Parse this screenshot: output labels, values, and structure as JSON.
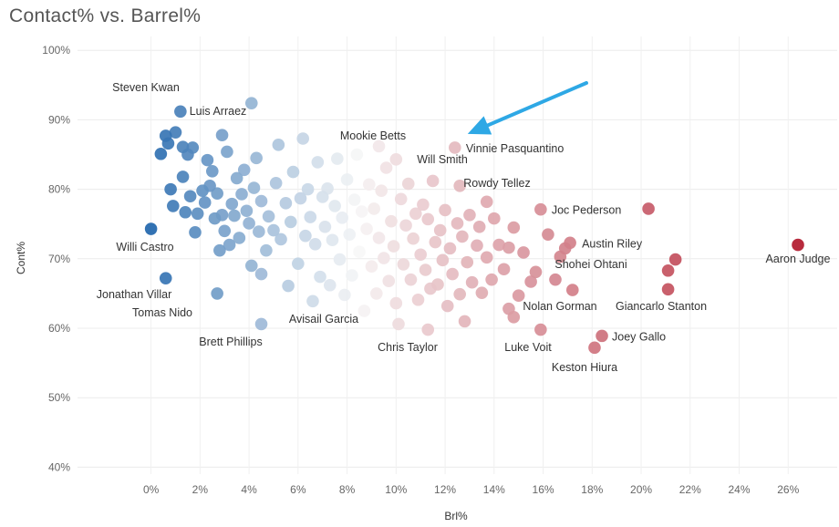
{
  "chart_data": {
    "type": "scatter",
    "title": "Contact% vs. Barrel%",
    "xlabel": "Brl%",
    "ylabel": "Cont%",
    "xlim": [
      -3,
      28
    ],
    "ylim": [
      39,
      102
    ],
    "x_ticks": [
      {
        "value": 0,
        "label": "0%"
      },
      {
        "value": 2,
        "label": "2%"
      },
      {
        "value": 4,
        "label": "4%"
      },
      {
        "value": 6,
        "label": "6%"
      },
      {
        "value": 8,
        "label": "8%"
      },
      {
        "value": 10,
        "label": "10%"
      },
      {
        "value": 12,
        "label": "12%"
      },
      {
        "value": 14,
        "label": "14%"
      },
      {
        "value": 16,
        "label": "16%"
      },
      {
        "value": 18,
        "label": "18%"
      },
      {
        "value": 20,
        "label": "20%"
      },
      {
        "value": 22,
        "label": "22%"
      },
      {
        "value": 24,
        "label": "24%"
      },
      {
        "value": 26,
        "label": "26%"
      }
    ],
    "y_ticks": [
      {
        "value": 40,
        "label": "40%"
      },
      {
        "value": 50,
        "label": "50%"
      },
      {
        "value": 60,
        "label": "60%"
      },
      {
        "value": 70,
        "label": "70%"
      },
      {
        "value": 80,
        "label": "80%"
      },
      {
        "value": 90,
        "label": "90%"
      },
      {
        "value": 100,
        "label": "100%"
      }
    ],
    "color_scale": {
      "low": "#2166ac",
      "mid": "#f7f7f7",
      "high": "#b2182b",
      "domain": [
        0,
        8.5,
        26.5
      ]
    },
    "labeled_players": [
      {
        "name": "Steven Kwan",
        "x": 1.2,
        "y": 91.2
      },
      {
        "name": "Luis Arraez",
        "x": 2.9,
        "y": 87.8
      },
      {
        "name": "Mookie Betts",
        "x": 9.3,
        "y": 86.2
      },
      {
        "name": "Vinnie Pasquantino",
        "x": 12.4,
        "y": 86.0
      },
      {
        "name": "Will Smith",
        "x": 12.6,
        "y": 80.5
      },
      {
        "name": "Rowdy Tellez",
        "x": 13.7,
        "y": 78.2
      },
      {
        "name": "Joc Pederson",
        "x": 15.9,
        "y": 77.1
      },
      {
        "name": "Willi Castro",
        "x": 2.8,
        "y": 71.2
      },
      {
        "name": "Austin Riley",
        "x": 17.1,
        "y": 72.3
      },
      {
        "name": "Aaron Judge",
        "x": 26.4,
        "y": 72.0
      },
      {
        "name": "Shohei Ohtani",
        "x": 16.7,
        "y": 70.3
      },
      {
        "name": "Jonathan Villar",
        "x": 0.6,
        "y": 67.2
      },
      {
        "name": "Tomas Nido",
        "x": 2.7,
        "y": 65.0
      },
      {
        "name": "Nolan Gorman",
        "x": 14.6,
        "y": 62.8
      },
      {
        "name": "Giancarlo Stanton",
        "x": 21.1,
        "y": 65.6
      },
      {
        "name": "Avisail Garcia",
        "x": 10.0,
        "y": 63.6
      },
      {
        "name": "Brett Phillips",
        "x": 4.5,
        "y": 60.6
      },
      {
        "name": "Chris Taylor",
        "x": 11.3,
        "y": 59.8
      },
      {
        "name": "Luke Voit",
        "x": 15.9,
        "y": 59.8
      },
      {
        "name": "Joey Gallo",
        "x": 18.4,
        "y": 58.9
      },
      {
        "name": "Keston Hiura",
        "x": 18.1,
        "y": 57.2
      }
    ],
    "other_points": [
      [
        0.0,
        74.3
      ],
      [
        0.4,
        85.1
      ],
      [
        0.6,
        87.7
      ],
      [
        0.7,
        86.6
      ],
      [
        0.9,
        77.6
      ],
      [
        1.0,
        88.2
      ],
      [
        1.3,
        81.8
      ],
      [
        1.3,
        86.1
      ],
      [
        1.4,
        76.7
      ],
      [
        1.5,
        85.0
      ],
      [
        1.6,
        79.0
      ],
      [
        1.7,
        86.0
      ],
      [
        1.9,
        76.5
      ],
      [
        2.1,
        79.8
      ],
      [
        2.2,
        78.1
      ],
      [
        2.3,
        84.2
      ],
      [
        2.4,
        80.5
      ],
      [
        2.5,
        82.6
      ],
      [
        2.6,
        75.8
      ],
      [
        2.7,
        79.4
      ],
      [
        2.9,
        76.3
      ],
      [
        3.0,
        74.0
      ],
      [
        3.1,
        85.4
      ],
      [
        3.2,
        72.0
      ],
      [
        3.3,
        77.9
      ],
      [
        3.4,
        76.2
      ],
      [
        3.5,
        81.6
      ],
      [
        3.6,
        73.0
      ],
      [
        3.7,
        79.3
      ],
      [
        3.8,
        82.8
      ],
      [
        3.9,
        76.9
      ],
      [
        4.0,
        75.1
      ],
      [
        4.1,
        92.4
      ],
      [
        4.1,
        69.0
      ],
      [
        4.2,
        80.2
      ],
      [
        4.3,
        84.5
      ],
      [
        4.4,
        73.9
      ],
      [
        4.5,
        78.3
      ],
      [
        4.5,
        67.8
      ],
      [
        4.7,
        71.2
      ],
      [
        4.8,
        76.1
      ],
      [
        5.0,
        74.1
      ],
      [
        5.1,
        80.9
      ],
      [
        5.2,
        86.4
      ],
      [
        5.3,
        72.8
      ],
      [
        5.5,
        78.0
      ],
      [
        5.6,
        66.1
      ],
      [
        5.7,
        75.3
      ],
      [
        5.8,
        82.5
      ],
      [
        6.0,
        69.3
      ],
      [
        6.1,
        78.7
      ],
      [
        6.2,
        87.3
      ],
      [
        6.3,
        73.3
      ],
      [
        6.4,
        80.0
      ],
      [
        6.5,
        76.0
      ],
      [
        6.6,
        63.9
      ],
      [
        6.7,
        72.1
      ],
      [
        6.8,
        83.9
      ],
      [
        6.9,
        67.4
      ],
      [
        7.0,
        78.9
      ],
      [
        7.1,
        74.6
      ],
      [
        7.2,
        80.1
      ],
      [
        7.3,
        66.2
      ],
      [
        7.4,
        72.7
      ],
      [
        7.5,
        77.6
      ],
      [
        7.6,
        84.4
      ],
      [
        7.7,
        69.9
      ],
      [
        7.8,
        75.9
      ],
      [
        7.9,
        64.8
      ],
      [
        8.0,
        81.4
      ],
      [
        8.1,
        73.5
      ],
      [
        8.2,
        67.6
      ],
      [
        8.3,
        78.5
      ],
      [
        8.4,
        85.0
      ],
      [
        8.5,
        71.0
      ],
      [
        8.6,
        76.8
      ],
      [
        8.7,
        62.5
      ],
      [
        8.8,
        74.3
      ],
      [
        8.9,
        80.7
      ],
      [
        9.0,
        68.9
      ],
      [
        9.1,
        77.2
      ],
      [
        9.2,
        65.0
      ],
      [
        9.3,
        73.0
      ],
      [
        9.4,
        79.8
      ],
      [
        9.5,
        70.1
      ],
      [
        9.6,
        83.1
      ],
      [
        9.7,
        66.8
      ],
      [
        9.8,
        75.4
      ],
      [
        9.9,
        71.8
      ],
      [
        10.0,
        84.3
      ],
      [
        10.1,
        60.6
      ],
      [
        10.2,
        78.6
      ],
      [
        10.3,
        69.2
      ],
      [
        10.4,
        74.8
      ],
      [
        10.5,
        80.8
      ],
      [
        10.6,
        67.0
      ],
      [
        10.7,
        72.9
      ],
      [
        10.8,
        76.5
      ],
      [
        10.9,
        64.1
      ],
      [
        11.0,
        70.6
      ],
      [
        11.1,
        77.8
      ],
      [
        11.2,
        68.4
      ],
      [
        11.3,
        75.7
      ],
      [
        11.4,
        65.7
      ],
      [
        11.5,
        81.2
      ],
      [
        11.6,
        72.4
      ],
      [
        11.7,
        66.3
      ],
      [
        11.8,
        74.1
      ],
      [
        11.9,
        69.8
      ],
      [
        12.0,
        77.0
      ],
      [
        12.1,
        63.2
      ],
      [
        12.2,
        71.5
      ],
      [
        12.3,
        67.8
      ],
      [
        12.5,
        75.1
      ],
      [
        12.6,
        64.9
      ],
      [
        12.7,
        73.2
      ],
      [
        12.8,
        61.0
      ],
      [
        12.9,
        69.5
      ],
      [
        13.0,
        76.3
      ],
      [
        13.1,
        66.6
      ],
      [
        13.3,
        71.9
      ],
      [
        13.4,
        74.6
      ],
      [
        13.5,
        65.1
      ],
      [
        13.7,
        70.2
      ],
      [
        13.9,
        67.0
      ],
      [
        14.0,
        75.8
      ],
      [
        14.2,
        72.0
      ],
      [
        14.4,
        68.5
      ],
      [
        14.6,
        71.6
      ],
      [
        14.8,
        74.5
      ],
      [
        14.8,
        61.6
      ],
      [
        15.0,
        64.7
      ],
      [
        15.2,
        70.9
      ],
      [
        15.5,
        66.7
      ],
      [
        15.7,
        68.1
      ],
      [
        16.2,
        73.5
      ],
      [
        16.5,
        67.0
      ],
      [
        16.9,
        71.5
      ],
      [
        17.2,
        65.5
      ],
      [
        20.3,
        77.2
      ],
      [
        21.1,
        68.3
      ],
      [
        21.4,
        69.9
      ],
      [
        0.8,
        80.0
      ],
      [
        1.8,
        73.8
      ]
    ],
    "annotation": {
      "type": "arrow",
      "pointing_to": "Vinnie Pasquantino"
    }
  }
}
